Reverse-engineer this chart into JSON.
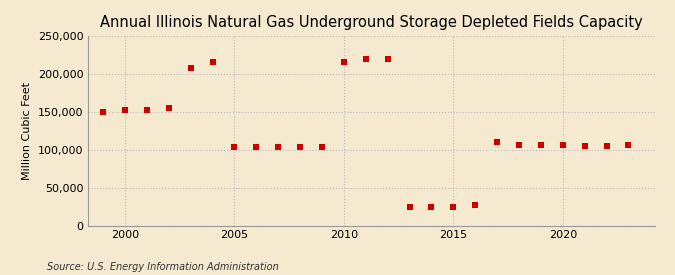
{
  "title": "Annual Illinois Natural Gas Underground Storage Depleted Fields Capacity",
  "ylabel": "Million Cubic Feet",
  "source": "Source: U.S. Energy Information Administration",
  "background_color": "#f5ead0",
  "plot_bg_color": "#f5ead0",
  "marker_color": "#cc0000",
  "years": [
    1999,
    2000,
    2001,
    2002,
    2003,
    2004,
    2005,
    2006,
    2007,
    2008,
    2009,
    2010,
    2011,
    2012,
    2013,
    2014,
    2015,
    2016,
    2017,
    2018,
    2019,
    2020,
    2021,
    2022,
    2023
  ],
  "values": [
    150000,
    152000,
    152000,
    155000,
    207000,
    215000,
    103000,
    103500,
    104000,
    104000,
    104000,
    216000,
    220000,
    220000,
    25000,
    25000,
    25000,
    27000,
    110000,
    106000,
    106000,
    106000,
    105000,
    105000,
    106000
  ],
  "ylim": [
    0,
    250000
  ],
  "yticks": [
    0,
    50000,
    100000,
    150000,
    200000,
    250000
  ],
  "xlim": [
    1998.3,
    2024.2
  ],
  "xticks": [
    2000,
    2005,
    2010,
    2015,
    2020
  ],
  "title_fontsize": 10.5,
  "ylabel_fontsize": 8,
  "tick_fontsize": 8,
  "source_fontsize": 7,
  "marker_size": 15,
  "grid_color": "#bbbbbb",
  "grid_linestyle": ":",
  "grid_linewidth": 0.8
}
